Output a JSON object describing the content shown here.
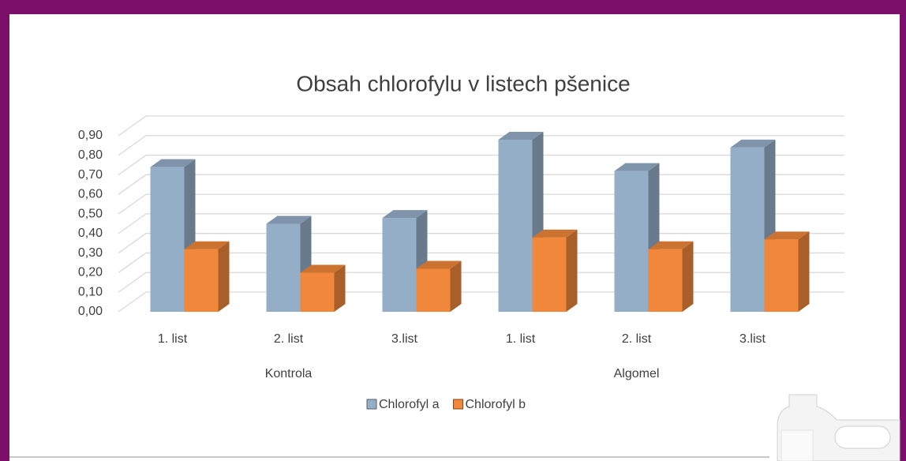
{
  "chart_data": {
    "type": "bar3d",
    "title": "Obsah chlorofylu v listech pšenice",
    "categories": [
      "1. list",
      "2. list",
      "3.list",
      "1. list",
      "2. list",
      "3.list"
    ],
    "category_groups": [
      "Kontrola",
      "Algomel"
    ],
    "series": [
      {
        "name": "Chlorofyl a",
        "color": "#95aec8",
        "values": [
          0.74,
          0.45,
          0.48,
          0.88,
          0.72,
          0.84
        ]
      },
      {
        "name": "Chlorofyl b",
        "color": "#f0873a",
        "values": [
          0.32,
          0.2,
          0.22,
          0.38,
          0.32,
          0.37
        ]
      }
    ],
    "ylim": [
      0,
      0.9
    ],
    "yticks": [
      {
        "value": 0,
        "label": "0,00"
      },
      {
        "value": 0.1,
        "label": "0,10"
      },
      {
        "value": 0.2,
        "label": "0,20"
      },
      {
        "value": 0.3,
        "label": "0,30"
      },
      {
        "value": 0.4,
        "label": "0,40"
      },
      {
        "value": 0.5,
        "label": "0,50"
      },
      {
        "value": 0.6,
        "label": "0,60"
      },
      {
        "value": 0.7,
        "label": "0,70"
      },
      {
        "value": 0.8,
        "label": "0,80"
      },
      {
        "value": 0.9,
        "label": "0,90"
      }
    ],
    "grid": true,
    "legend": "bottom"
  }
}
